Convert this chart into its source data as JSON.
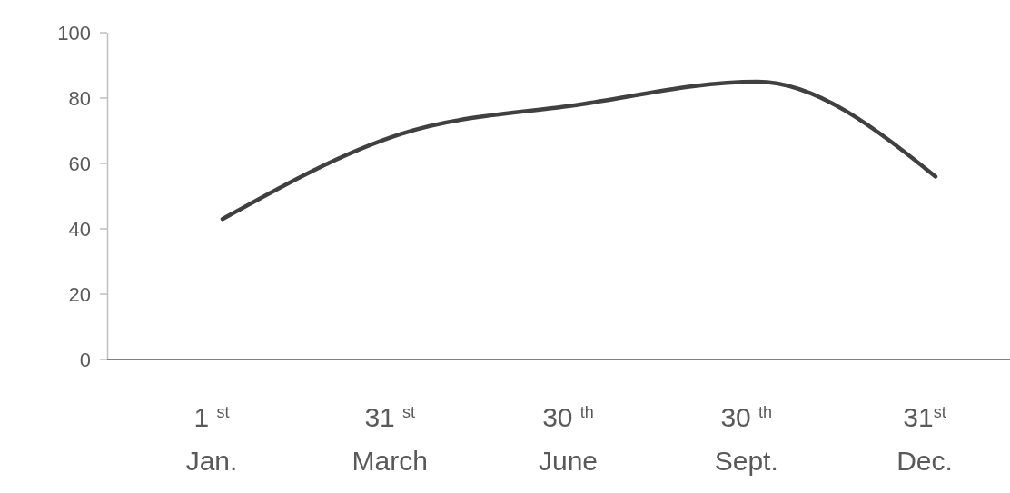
{
  "chart_data": {
    "type": "line",
    "categories": [
      "1 $^{st}$\nJan.",
      "31 $^{st}$\nMarch",
      "30 $^{th}$\nJune",
      "30 $^{th}$\nSept.",
      "31$^{st}$\nDec."
    ],
    "series": [
      {
        "color": "#404040",
        "values": [
          43,
          69,
          78,
          85,
          56
        ]
      }
    ],
    "ylim": [
      0,
      100
    ],
    "yticks": [
      0,
      20,
      40,
      60,
      80,
      100
    ],
    "marker": "none",
    "line_style": "solid"
  }
}
